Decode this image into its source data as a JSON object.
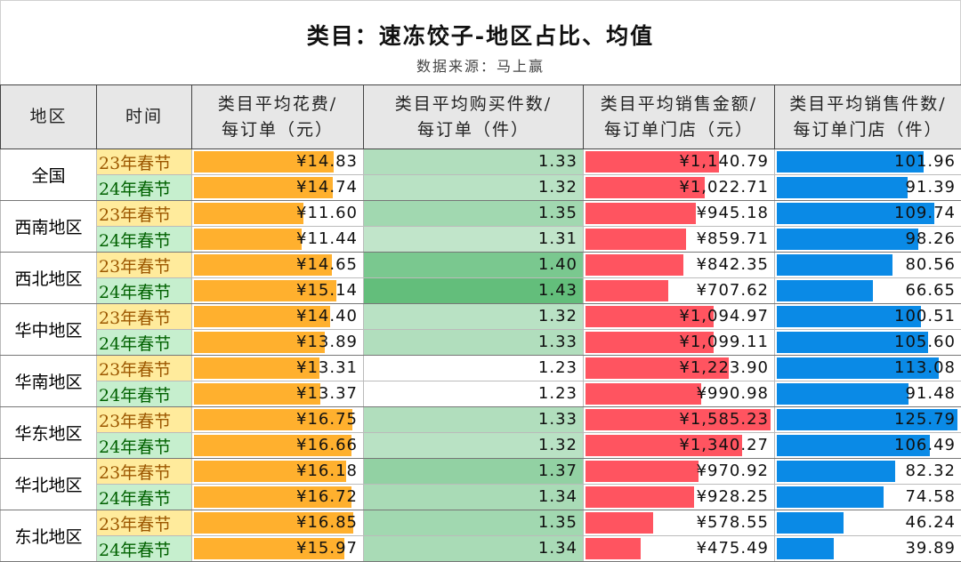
{
  "title": "类目：速冻饺子-地区占比、均值",
  "subtitle": "数据来源：马上赢",
  "chart_data": {
    "type": "table",
    "columns": [
      "地区",
      "时间",
      "类目平均花费/每订单（元）",
      "类目平均购买件数/每订单（件）",
      "类目平均销售金额/每订单门店（元）",
      "类目平均销售件数/每订单门店（件）"
    ],
    "colors": {
      "spend": "#ffb02e",
      "qty_scale_max": "#63be7b",
      "qty_scale_min": "#ffffff",
      "sales": "#ff5460",
      "units": "#0a8ae6",
      "t23_bg": "#ffeb9c",
      "t23_text": "#9c5700",
      "t24_bg": "#c6efce",
      "t24_text": "#006100"
    },
    "regions": [
      {
        "name": "全国",
        "rows": [
          {
            "time": "23年春节",
            "spend": "¥14.83",
            "qty": "1.33",
            "sales": "¥1,140.79",
            "units": "101.96"
          },
          {
            "time": "24年春节",
            "spend": "¥14.74",
            "qty": "1.32",
            "sales": "¥1,022.71",
            "units": "91.39"
          }
        ]
      },
      {
        "name": "西南地区",
        "rows": [
          {
            "time": "23年春节",
            "spend": "¥11.60",
            "qty": "1.35",
            "sales": "¥945.18",
            "units": "109.74"
          },
          {
            "time": "24年春节",
            "spend": "¥11.44",
            "qty": "1.31",
            "sales": "¥859.71",
            "units": "98.26"
          }
        ]
      },
      {
        "name": "西北地区",
        "rows": [
          {
            "time": "23年春节",
            "spend": "¥14.65",
            "qty": "1.40",
            "sales": "¥842.35",
            "units": "80.56"
          },
          {
            "time": "24年春节",
            "spend": "¥15.14",
            "qty": "1.43",
            "sales": "¥707.62",
            "units": "66.65"
          }
        ]
      },
      {
        "name": "华中地区",
        "rows": [
          {
            "time": "23年春节",
            "spend": "¥14.40",
            "qty": "1.32",
            "sales": "¥1,094.97",
            "units": "100.51"
          },
          {
            "time": "24年春节",
            "spend": "¥13.89",
            "qty": "1.33",
            "sales": "¥1,099.11",
            "units": "105.60"
          }
        ]
      },
      {
        "name": "华南地区",
        "rows": [
          {
            "time": "23年春节",
            "spend": "¥13.31",
            "qty": "1.23",
            "sales": "¥1,223.90",
            "units": "113.08"
          },
          {
            "time": "24年春节",
            "spend": "¥13.37",
            "qty": "1.23",
            "sales": "¥990.98",
            "units": "91.48"
          }
        ]
      },
      {
        "name": "华东地区",
        "rows": [
          {
            "time": "23年春节",
            "spend": "¥16.75",
            "qty": "1.33",
            "sales": "¥1,585.23",
            "units": "125.79"
          },
          {
            "time": "24年春节",
            "spend": "¥16.66",
            "qty": "1.32",
            "sales": "¥1,340.27",
            "units": "106.49"
          }
        ]
      },
      {
        "name": "华北地区",
        "rows": [
          {
            "time": "23年春节",
            "spend": "¥16.18",
            "qty": "1.37",
            "sales": "¥970.92",
            "units": "82.32"
          },
          {
            "time": "24年春节",
            "spend": "¥16.72",
            "qty": "1.34",
            "sales": "¥928.25",
            "units": "74.58"
          }
        ]
      },
      {
        "name": "东北地区",
        "rows": [
          {
            "time": "23年春节",
            "spend": "¥16.85",
            "qty": "1.35",
            "sales": "¥578.55",
            "units": "46.24"
          },
          {
            "time": "24年春节",
            "spend": "¥15.97",
            "qty": "1.34",
            "sales": "¥475.49",
            "units": "39.89"
          }
        ]
      }
    ]
  }
}
